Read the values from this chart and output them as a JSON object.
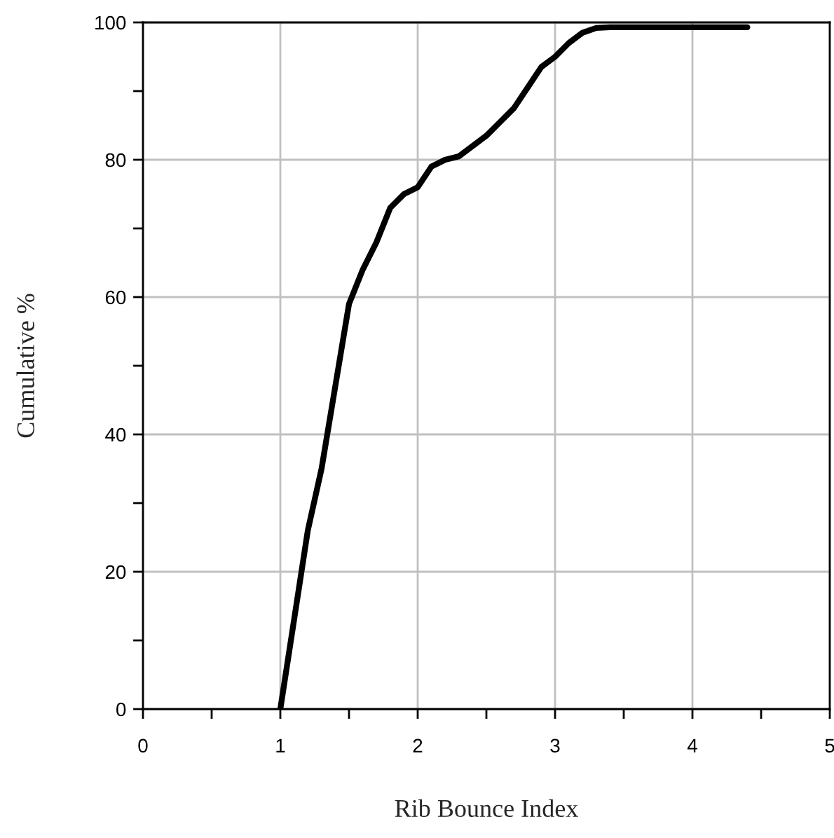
{
  "chart_data": {
    "type": "line",
    "xlabel": "Rib Bounce Index",
    "ylabel": "Cumulative %",
    "x": [
      1,
      1.1,
      1.2,
      1.3,
      1.4,
      1.5,
      1.6,
      1.7,
      1.8,
      1.9,
      2.0,
      2.1,
      2.2,
      2.3,
      2.4,
      2.5,
      2.6,
      2.7,
      2.8,
      2.9,
      3.0,
      3.1,
      3.2,
      3.3,
      3.4,
      4.4
    ],
    "series": [
      {
        "color": "#000000",
        "values": [
          0,
          13,
          26,
          35,
          47,
          59,
          64,
          68,
          73,
          75,
          76,
          79,
          80,
          80.5,
          82,
          83.5,
          85.5,
          87.5,
          90.5,
          93.5,
          95,
          97,
          98.5,
          99.2,
          99.3,
          99.3
        ]
      }
    ],
    "xlim": [
      0,
      5
    ],
    "ylim": [
      0,
      100
    ],
    "xticks": [
      0,
      {
        "value": 0.5,
        "label": null
      },
      1,
      {
        "value": 1.5,
        "label": null
      },
      2,
      {
        "value": 2.5,
        "label": null
      },
      3,
      {
        "value": 3.5,
        "label": null
      },
      4,
      {
        "value": 4.5,
        "label": null
      },
      5
    ],
    "yticks": [
      0,
      {
        "value": 10,
        "label": null
      },
      20,
      {
        "value": 30,
        "label": null
      },
      40,
      {
        "value": 50,
        "label": null
      },
      60,
      {
        "value": 70,
        "label": null
      },
      80,
      {
        "value": 90,
        "label": null
      },
      100
    ],
    "grid": true,
    "marker": "none",
    "line_style": "solid"
  }
}
